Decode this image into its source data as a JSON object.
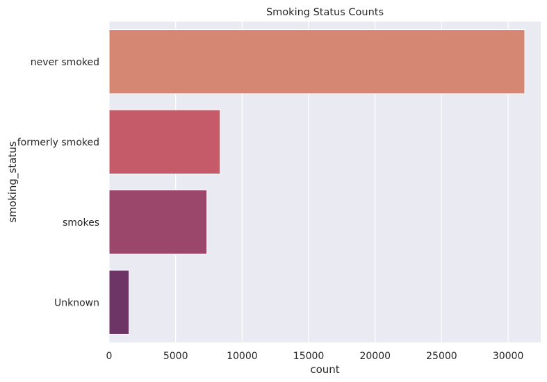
{
  "chart_data": {
    "type": "bar",
    "orientation": "horizontal",
    "title": "Smoking Status Counts",
    "xlabel": "count",
    "ylabel": "smoking_status",
    "categories": [
      "never smoked",
      "formerly smoked",
      "smokes",
      "Unknown"
    ],
    "values": [
      31250,
      8350,
      7350,
      1500
    ],
    "xlim": [
      0,
      32450
    ],
    "xticks": [
      0,
      5000,
      10000,
      15000,
      20000,
      25000,
      30000
    ],
    "xtick_labels": [
      "0",
      "5000",
      "10000",
      "15000",
      "20000",
      "25000",
      "30000"
    ],
    "colors": [
      "#d68774",
      "#c55b69",
      "#9b476c",
      "#6d3566"
    ],
    "grid": true,
    "legend": "none",
    "background": "#eaeaf2"
  }
}
